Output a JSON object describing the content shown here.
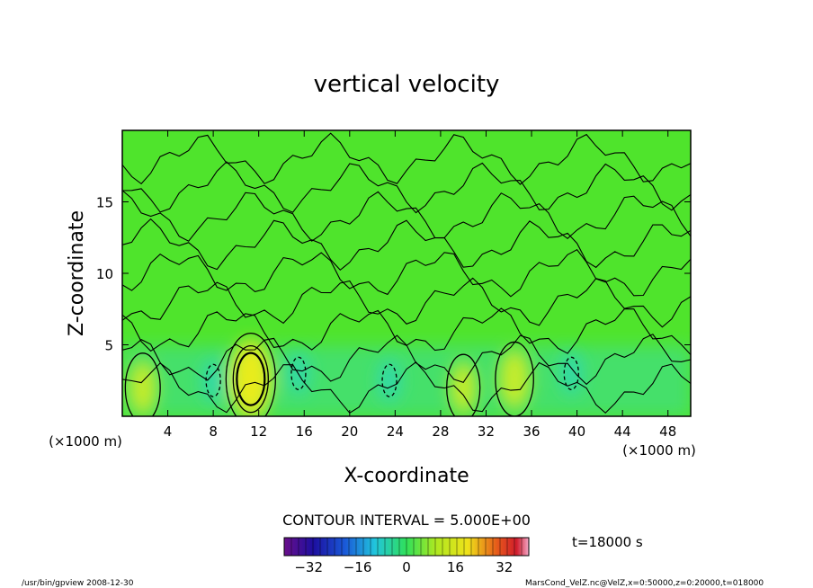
{
  "chart_data": {
    "type": "heatmap",
    "title": "vertical velocity",
    "xlabel": "X-coordinate",
    "ylabel": "Z-coordinate",
    "x_units": "(×1000 m)",
    "y_units": "(×1000 m)",
    "xlim": [
      0,
      50
    ],
    "ylim": [
      0,
      20
    ],
    "x_ticks": [
      4,
      8,
      12,
      16,
      20,
      24,
      28,
      32,
      36,
      40,
      44,
      48
    ],
    "y_ticks": [
      5,
      10,
      15
    ],
    "contour_interval_text": "CONTOUR INTERVAL = 5.000E+00",
    "time_text": "t=18000 s",
    "colorbar": {
      "range": [
        -40,
        40
      ],
      "ticks": [
        -32,
        -16,
        0,
        16,
        32
      ]
    },
    "features": [
      {
        "type": "updraft",
        "x": 11.3,
        "z": 2.6,
        "value": 15
      },
      {
        "type": "updraft",
        "x": 34.5,
        "z": 2.6,
        "value": 8
      },
      {
        "type": "updraft",
        "x": 1.8,
        "z": 2.0,
        "value": 6
      },
      {
        "type": "updraft",
        "x": 30.0,
        "z": 2.0,
        "value": 5
      },
      {
        "type": "downdraft",
        "x": 8.0,
        "z": 2.5,
        "value": -5
      },
      {
        "type": "downdraft",
        "x": 15.5,
        "z": 3.0,
        "value": -5
      },
      {
        "type": "downdraft",
        "x": 23.5,
        "z": 2.5,
        "value": -5
      },
      {
        "type": "downdraft",
        "x": 39.5,
        "z": 3.0,
        "value": -5
      }
    ]
  },
  "footer": {
    "left": "/usr/bin/gpview   2008-12-30",
    "right": "MarsCond_VelZ.nc@VelZ,x=0:50000,z=0:20000,t=018000"
  }
}
